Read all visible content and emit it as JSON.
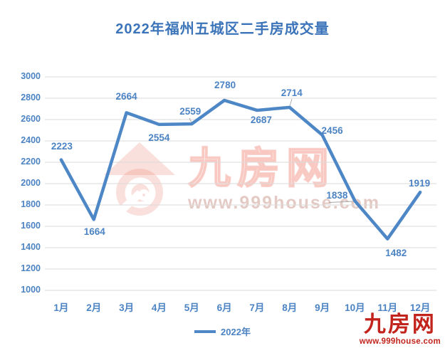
{
  "title": "2022年福州五城区二手房成交量",
  "chart_data": {
    "type": "line",
    "title": "2022年福州五城区二手房成交量",
    "categories": [
      "1月",
      "2月",
      "3月",
      "4月",
      "5月",
      "6月",
      "7月",
      "8月",
      "9月",
      "10月",
      "11月",
      "12月"
    ],
    "series": [
      {
        "name": "2022年",
        "values": [
          2223,
          1664,
          2664,
          2554,
          2559,
          2780,
          2687,
          2714,
          2456,
          1838,
          1482,
          1919
        ]
      }
    ],
    "ylim": [
      1000,
      3000
    ],
    "ytick_step": 200,
    "yticks": [
      "3000",
      "2800",
      "2600",
      "2400",
      "2200",
      "2000",
      "1800",
      "1600",
      "1400",
      "1200",
      "1000"
    ],
    "grid": true,
    "legend_position": "bottom",
    "line_color": "#4E87C6",
    "label_color": "#4C83C3",
    "gridline_color": "#DADADA",
    "leader_color": "#A6A6A6"
  },
  "legend": {
    "label": "2022年"
  },
  "watermark": {
    "brand": "九房网",
    "url": "www.999house.com"
  },
  "logo": {
    "brand": "九房网",
    "url": "www.999house.com"
  },
  "colors": {
    "title_blue": "#3C74B9",
    "logo_red": "#C2241D",
    "watermark_pink": "#EC7A6B"
  }
}
